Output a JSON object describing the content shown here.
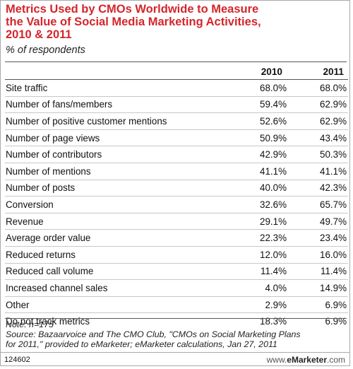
{
  "chart_data": {
    "type": "table",
    "title": "Metrics Used by CMOs Worldwide to Measure the Value of Social Media Marketing Activities, 2010 & 2011",
    "title_lines": [
      "Metrics Used by CMOs Worldwide to Measure",
      "the Value of Social Media Marketing Activities,",
      "2010 & 2011"
    ],
    "subtitle": "% of respondents",
    "columns": [
      "",
      "2010",
      "2011"
    ],
    "rows": [
      {
        "label": "Site traffic",
        "v2010": "68.0%",
        "v2011": "68.0%"
      },
      {
        "label": "Number of fans/members",
        "v2010": "59.4%",
        "v2011": "62.9%"
      },
      {
        "label": "Number of positive customer mentions",
        "v2010": "52.6%",
        "v2011": "62.9%"
      },
      {
        "label": "Number of page views",
        "v2010": "50.9%",
        "v2011": "43.4%"
      },
      {
        "label": "Number of contributors",
        "v2010": "42.9%",
        "v2011": "50.3%"
      },
      {
        "label": "Number of mentions",
        "v2010": "41.1%",
        "v2011": "41.1%"
      },
      {
        "label": "Number of posts",
        "v2010": "40.0%",
        "v2011": "42.3%"
      },
      {
        "label": "Conversion",
        "v2010": "32.6%",
        "v2011": "65.7%"
      },
      {
        "label": "Revenue",
        "v2010": "29.1%",
        "v2011": "49.7%"
      },
      {
        "label": "Average order value",
        "v2010": "22.3%",
        "v2011": "23.4%"
      },
      {
        "label": "Reduced returns",
        "v2010": "12.0%",
        "v2011": "16.0%"
      },
      {
        "label": "Reduced call volume",
        "v2010": "11.4%",
        "v2011": "11.4%"
      },
      {
        "label": "Increased channel sales",
        "v2010": "4.0%",
        "v2011": "14.9%"
      },
      {
        "label": "Other",
        "v2010": "2.9%",
        "v2011": "6.9%"
      },
      {
        "label": "Do not track metrics",
        "v2010": "18.3%",
        "v2011": "6.9%"
      }
    ],
    "notes": [
      "Note: n=175",
      "Source: Bazaarvoice and The CMO Club, \"CMOs on Social Marketing Plans",
      "for 2011,\" provided to eMarketer; eMarketer calculations, Jan 27, 2011"
    ]
  },
  "footer": {
    "chart_id": "124602",
    "brand_prefix": "www.",
    "brand_name": "eMarketer",
    "brand_suffix": ".com"
  },
  "colors": {
    "title": "#d4262b",
    "rule": "#555555",
    "row_divider": "#c8c8c8"
  }
}
